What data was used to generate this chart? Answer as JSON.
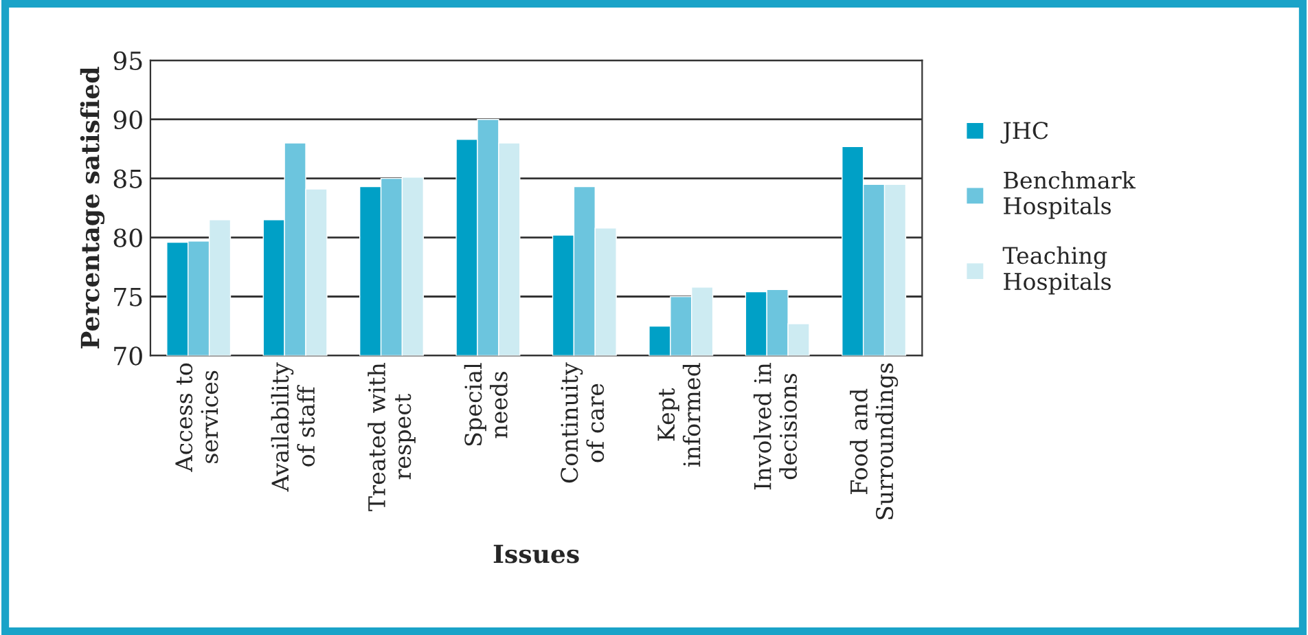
{
  "chart_data": {
    "type": "bar",
    "xlabel": "Issues",
    "ylabel": "Percentage satisfied",
    "categories": [
      "Access to\nservices",
      "Availability\nof staff",
      "Treated with\nrespect",
      "Special\nneeds",
      "Continuity\nof care",
      "Kept\ninformed",
      "Involved in\ndecisions",
      "Food and\nSurroundings"
    ],
    "series": [
      {
        "name": "JHC",
        "color": "#00a0c6",
        "values": [
          79.6,
          81.5,
          84.3,
          88.3,
          80.2,
          72.5,
          75.4,
          87.7
        ]
      },
      {
        "name": "Benchmark\nHospitals",
        "color": "#6cc5de",
        "values": [
          79.7,
          88.0,
          85.0,
          90.0,
          84.3,
          75.0,
          75.6,
          84.5
        ]
      },
      {
        "name": "Teaching\nHospitals",
        "color": "#cdebf2",
        "values": [
          81.5,
          84.1,
          85.1,
          88.0,
          80.8,
          75.8,
          72.7,
          84.5
        ]
      }
    ],
    "ylim": [
      70,
      95
    ],
    "yticks": [
      70,
      75,
      80,
      85,
      90,
      95
    ],
    "grid": "y",
    "legend": "right"
  }
}
